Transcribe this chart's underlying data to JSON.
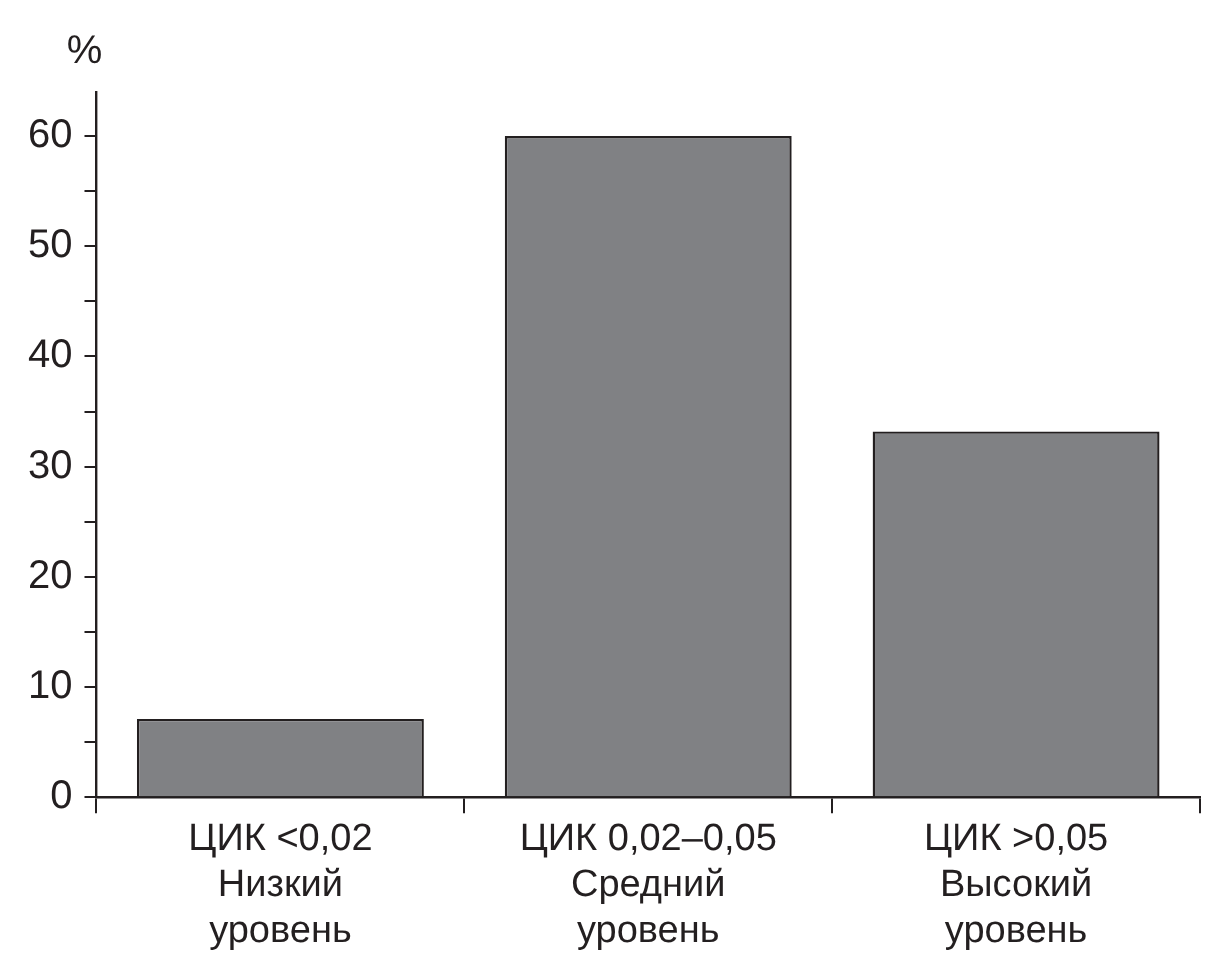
{
  "chart_data": {
    "type": "bar",
    "ylabel": "%",
    "categories": [
      "ЦИК <0,02\nНизкий\nуровень",
      "ЦИК 0,02–0,05\nСредний\nуровень",
      "ЦИК >0,05\nВысокий\nуровень"
    ],
    "values": [
      7.1,
      60,
      33.2
    ],
    "color": "#808184",
    "ylim": [
      0,
      64
    ],
    "yticks": [
      0,
      {
        "value": 5,
        "label": null
      },
      10,
      {
        "value": 15,
        "label": null
      },
      20,
      {
        "value": 25,
        "label": null
      },
      30,
      {
        "value": 35,
        "label": null
      },
      40,
      {
        "value": 45,
        "label": null
      },
      50,
      {
        "value": 55,
        "label": null
      },
      60
    ],
    "grid": false,
    "legend": false
  }
}
